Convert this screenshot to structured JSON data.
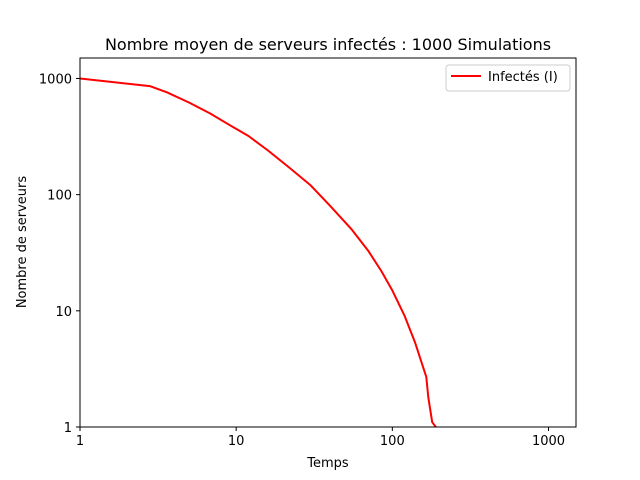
{
  "chart_data": {
    "type": "line",
    "title": "Nombre moyen de serveurs infectés : 1000 Simulations",
    "xlabel": "Temps",
    "ylabel": "Nombre de serveurs",
    "xscale": "log",
    "yscale": "log",
    "xlim": [
      1,
      1500
    ],
    "ylim": [
      1,
      1500
    ],
    "xticks": [
      {
        "value": 1,
        "label": "1"
      },
      {
        "value": 10,
        "label": "10"
      },
      {
        "value": 100,
        "label": "100"
      },
      {
        "value": 1000,
        "label": "1000"
      }
    ],
    "yticks": [
      {
        "value": 1,
        "label": "1"
      },
      {
        "value": 10,
        "label": "10"
      },
      {
        "value": 100,
        "label": "100"
      },
      {
        "value": 1000,
        "label": "1000"
      }
    ],
    "grid": false,
    "legend_position": "top-right",
    "series": [
      {
        "name": "Infectés (I)",
        "color": "#ff0000",
        "x": [
          1,
          2.8,
          3.6,
          5,
          6.8,
          9,
          12,
          16,
          22,
          30,
          40,
          55,
          70,
          85,
          100,
          120,
          140,
          165,
          170,
          180,
          190
        ],
        "y": [
          1000,
          860,
          760,
          620,
          500,
          400,
          320,
          240,
          170,
          120,
          80,
          50,
          33,
          22,
          15,
          9,
          5.3,
          2.7,
          1.8,
          1.1,
          1
        ]
      }
    ]
  }
}
